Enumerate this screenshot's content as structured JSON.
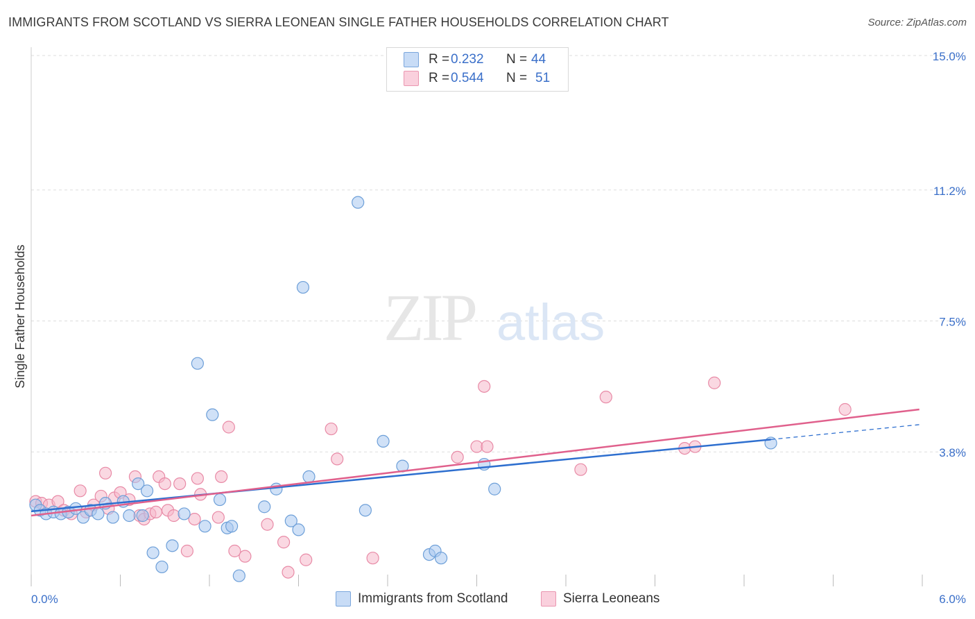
{
  "header": {
    "title": "IMMIGRANTS FROM SCOTLAND VS SIERRA LEONEAN SINGLE FATHER HOUSEHOLDS CORRELATION CHART",
    "source": "Source: ZipAtlas.com"
  },
  "watermark": {
    "zip": "ZIP",
    "atlas": "atlas"
  },
  "legend": {
    "rows": [
      {
        "r_label": "R =",
        "r_value": "0.232",
        "n_label": "N =",
        "n_value": "44",
        "color": "#a9c8f0"
      },
      {
        "r_label": "R =",
        "r_value": "0.544",
        "n_label": "N =",
        "n_value": "51",
        "color": "#f5b8cb"
      }
    ]
  },
  "colors": {
    "blue_fill": "#a9c8f0",
    "blue_stroke": "#6d9fd8",
    "blue_line": "#2e6fcf",
    "pink_fill": "#f5b8cb",
    "pink_stroke": "#e88aa6",
    "pink_line": "#e0608c",
    "tick_label": "#3a6fc9",
    "grid": "#dddddd"
  },
  "chart_data": {
    "type": "scatter",
    "title": "IMMIGRANTS FROM SCOTLAND VS SIERRA LEONEAN SINGLE FATHER HOUSEHOLDS CORRELATION CHART",
    "xlabel": "",
    "ylabel": "Single Father Households",
    "xlim": [
      0,
      6.0
    ],
    "ylim": [
      0,
      15.0
    ],
    "x_tick_labels": [
      "0.0%",
      "6.0%"
    ],
    "y_ticks": [
      {
        "value": 3.8,
        "label": "3.8%"
      },
      {
        "value": 7.5,
        "label": "7.5%"
      },
      {
        "value": 11.2,
        "label": "11.2%"
      },
      {
        "value": 15.0,
        "label": "15.0%"
      }
    ],
    "grid": true,
    "legend_position": "bottom",
    "series": [
      {
        "name": "Immigrants from Scotland",
        "color": "#a9c8f0",
        "trend": {
          "x": [
            0.0,
            4.98
          ],
          "y": [
            2.12,
            4.15
          ],
          "extended_to": {
            "x": 5.98,
            "y": 4.57
          }
        },
        "points": [
          [
            0.03,
            2.3
          ],
          [
            0.06,
            2.15
          ],
          [
            0.1,
            2.05
          ],
          [
            0.15,
            2.1
          ],
          [
            0.2,
            2.05
          ],
          [
            0.25,
            2.1
          ],
          [
            0.3,
            2.2
          ],
          [
            0.35,
            1.95
          ],
          [
            0.4,
            2.15
          ],
          [
            0.45,
            2.05
          ],
          [
            0.5,
            2.35
          ],
          [
            0.55,
            1.95
          ],
          [
            0.62,
            2.4
          ],
          [
            0.66,
            2.0
          ],
          [
            0.72,
            2.9
          ],
          [
            0.75,
            2.0
          ],
          [
            0.78,
            2.7
          ],
          [
            0.82,
            0.95
          ],
          [
            0.88,
            0.55
          ],
          [
            0.95,
            1.15
          ],
          [
            1.03,
            2.05
          ],
          [
            1.12,
            6.3
          ],
          [
            1.17,
            1.7
          ],
          [
            1.22,
            4.85
          ],
          [
            1.27,
            2.45
          ],
          [
            1.32,
            1.65
          ],
          [
            1.35,
            1.7
          ],
          [
            1.4,
            0.3
          ],
          [
            1.57,
            2.25
          ],
          [
            1.65,
            2.75
          ],
          [
            1.75,
            1.85
          ],
          [
            1.8,
            1.6
          ],
          [
            1.83,
            8.45
          ],
          [
            1.87,
            3.1
          ],
          [
            2.2,
            10.85
          ],
          [
            2.25,
            2.15
          ],
          [
            2.37,
            4.1
          ],
          [
            2.5,
            3.4
          ],
          [
            2.68,
            0.9
          ],
          [
            2.72,
            1.0
          ],
          [
            2.76,
            0.8
          ],
          [
            3.05,
            3.45
          ],
          [
            3.12,
            2.75
          ],
          [
            4.98,
            4.05
          ]
        ]
      },
      {
        "name": "Sierra Leoneans",
        "color": "#f5b8cb",
        "trend": {
          "x": [
            0.0,
            5.98
          ],
          "y": [
            2.0,
            5.0
          ]
        },
        "points": [
          [
            0.03,
            2.4
          ],
          [
            0.07,
            2.35
          ],
          [
            0.12,
            2.3
          ],
          [
            0.18,
            2.4
          ],
          [
            0.22,
            2.15
          ],
          [
            0.27,
            2.05
          ],
          [
            0.33,
            2.7
          ],
          [
            0.37,
            2.1
          ],
          [
            0.42,
            2.3
          ],
          [
            0.47,
            2.55
          ],
          [
            0.5,
            3.2
          ],
          [
            0.52,
            2.2
          ],
          [
            0.56,
            2.5
          ],
          [
            0.6,
            2.65
          ],
          [
            0.66,
            2.45
          ],
          [
            0.7,
            3.1
          ],
          [
            0.73,
            2.0
          ],
          [
            0.76,
            1.9
          ],
          [
            0.8,
            2.05
          ],
          [
            0.84,
            2.1
          ],
          [
            0.86,
            3.1
          ],
          [
            0.9,
            2.9
          ],
          [
            0.92,
            2.15
          ],
          [
            0.96,
            2.0
          ],
          [
            1.0,
            2.9
          ],
          [
            1.05,
            1.0
          ],
          [
            1.1,
            1.9
          ],
          [
            1.12,
            3.05
          ],
          [
            1.14,
            2.6
          ],
          [
            1.26,
            1.95
          ],
          [
            1.28,
            3.1
          ],
          [
            1.33,
            4.5
          ],
          [
            1.37,
            1.0
          ],
          [
            1.44,
            0.85
          ],
          [
            1.59,
            1.75
          ],
          [
            1.7,
            1.25
          ],
          [
            1.73,
            0.4
          ],
          [
            1.85,
            0.75
          ],
          [
            2.02,
            4.45
          ],
          [
            2.06,
            3.6
          ],
          [
            2.3,
            0.8
          ],
          [
            2.87,
            3.65
          ],
          [
            3.0,
            3.95
          ],
          [
            3.05,
            5.65
          ],
          [
            3.07,
            3.95
          ],
          [
            3.7,
            3.3
          ],
          [
            3.87,
            5.35
          ],
          [
            4.4,
            3.9
          ],
          [
            4.47,
            3.95
          ],
          [
            4.6,
            5.75
          ],
          [
            5.48,
            5.0
          ]
        ]
      }
    ]
  }
}
